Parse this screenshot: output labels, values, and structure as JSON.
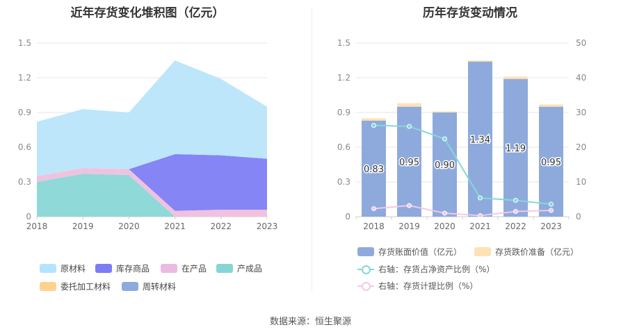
{
  "chart_data": [
    {
      "type": "area",
      "title": "近年存货变化堆积图（亿元）",
      "x": [
        "2018",
        "2019",
        "2020",
        "2021",
        "2022",
        "2023"
      ],
      "y_ticks": [
        "0",
        "0.3",
        "0.6",
        "0.9",
        "1.2",
        "1.5"
      ],
      "ylim": [
        0,
        1.5
      ],
      "stacked": true,
      "series": [
        {
          "name": "产成品",
          "color": "#8fd9d9",
          "values": [
            0.3,
            0.37,
            0.36,
            0.0,
            0.0,
            0.0
          ]
        },
        {
          "name": "在产品",
          "color": "#f0c2e0",
          "values": [
            0.05,
            0.05,
            0.05,
            0.05,
            0.06,
            0.06
          ]
        },
        {
          "name": "库存商品",
          "color": "#8585f5",
          "values": [
            0.0,
            0.0,
            0.0,
            0.49,
            0.47,
            0.44
          ]
        },
        {
          "name": "原材料",
          "color": "#bde6fb",
          "values": [
            0.47,
            0.51,
            0.49,
            0.81,
            0.66,
            0.45
          ]
        },
        {
          "name": "委托加工材料",
          "color": "#ffd89a",
          "values": [
            0,
            0,
            0,
            0,
            0,
            0
          ]
        },
        {
          "name": "周转材料",
          "color": "#8eaadc",
          "values": [
            0,
            0,
            0,
            0,
            0,
            0
          ]
        }
      ],
      "legend": [
        "原材料",
        "库存商品",
        "在产品",
        "产成品",
        "委托加工材料",
        "周转材料"
      ],
      "legend_colors": [
        "#b4e4fc",
        "#7c7cf5",
        "#eabbe0",
        "#84d6d6",
        "#ffd28f",
        "#8eaadc"
      ],
      "legend_placement": "bottom",
      "grid": true
    },
    {
      "type": "bar",
      "title": "历年存货变动情况",
      "categories": [
        "2018",
        "2019",
        "2020",
        "2021",
        "2022",
        "2023"
      ],
      "y_ticks_left": [
        "0",
        "0.3",
        "0.6",
        "0.9",
        "1.2",
        "1.5"
      ],
      "y_ticks_right": [
        "0",
        "10",
        "20",
        "30",
        "40",
        "50"
      ],
      "ylim_left": [
        0,
        1.5
      ],
      "ylim_right": [
        0,
        50
      ],
      "series": [
        {
          "name": "存货账面价值（亿元）",
          "type": "bar",
          "color": "#8eaadc",
          "values": [
            0.83,
            0.95,
            0.9,
            1.34,
            1.19,
            0.95
          ],
          "labels": [
            "0.83",
            "0.95",
            "0.90",
            "1.34",
            "1.19",
            "0.95"
          ]
        },
        {
          "name": "存货跌价准备（亿元）",
          "type": "bar",
          "color": "#fde2b5",
          "values": [
            0.02,
            0.03,
            0.01,
            0.01,
            0.02,
            0.02
          ]
        },
        {
          "name": "右轴：存货占净资产比例（%）",
          "type": "line",
          "axis": "right",
          "color": "#85d9d6",
          "values": [
            26.3,
            26.0,
            22.4,
            5.4,
            4.7,
            3.6
          ]
        },
        {
          "name": "右轴：存货计提比例（%）",
          "type": "line",
          "axis": "right",
          "color": "#f2c8e8",
          "values": [
            2.3,
            3.2,
            1.0,
            0.3,
            1.5,
            1.8
          ]
        }
      ],
      "legend_placement": "bottom",
      "grid": true
    }
  ],
  "source": "数据来源：恒生聚源"
}
